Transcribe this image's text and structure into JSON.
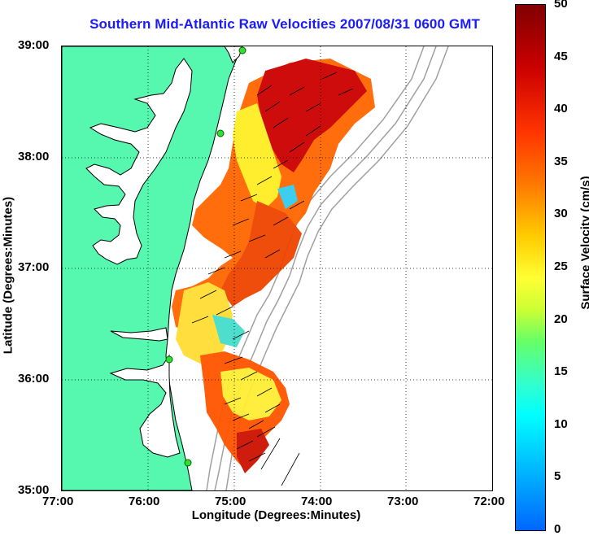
{
  "title": "Southern Mid-Atlantic Raw Velocities 2007/08/31 0600 GMT",
  "x_axis": {
    "label": "Longitude (Degrees:Minutes)",
    "ticks": [
      "77:00",
      "76:00",
      "75:00",
      "74:00",
      "73:00",
      "72:00"
    ]
  },
  "y_axis": {
    "label": "Latitude (Degrees:Minutes)",
    "ticks": [
      "39:00",
      "38:00",
      "37:00",
      "36:00",
      "35:00"
    ]
  },
  "colorbar": {
    "label": "Surface Velocity (cm/s)",
    "ticks": [
      "50",
      "45",
      "40",
      "35",
      "30",
      "25",
      "20",
      "15",
      "10",
      "5",
      "0"
    ],
    "range": [
      0,
      50
    ]
  },
  "colors": {
    "land": "#56f7ae",
    "coast": "#000000",
    "title": "#1a1aff",
    "station": "#33dd33",
    "bathymetry": "#a0a0a0"
  },
  "map_extent": {
    "lon": [
      -77,
      -72
    ],
    "lat": [
      35,
      39
    ]
  }
}
